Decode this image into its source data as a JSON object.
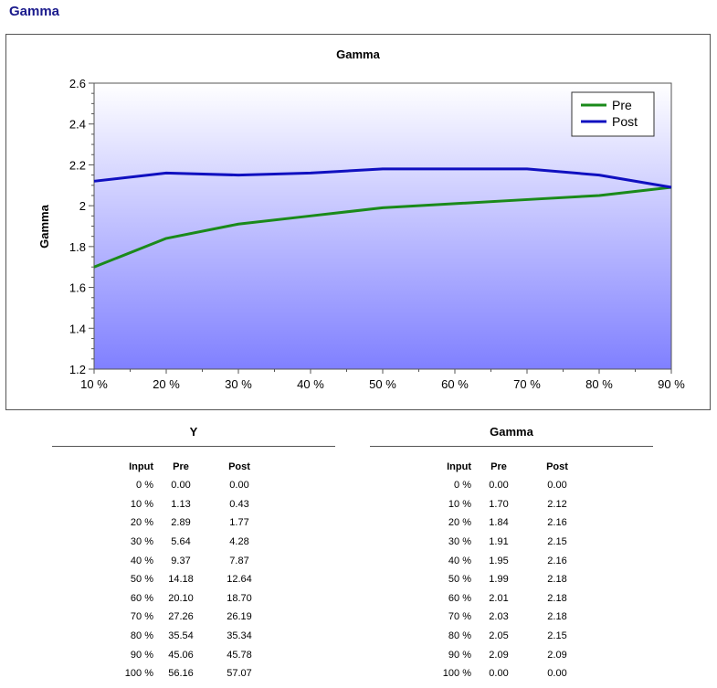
{
  "page": {
    "title": "Gamma"
  },
  "chart_data": {
    "type": "line",
    "title": "Gamma",
    "xlabel": "",
    "ylabel": "Gamma",
    "categories": [
      "10 %",
      "20 %",
      "30 %",
      "40 %",
      "50 %",
      "60 %",
      "70 %",
      "80 %",
      "90 %"
    ],
    "ylim": [
      1.2,
      2.6
    ],
    "yticks": [
      "1.2",
      "1.4",
      "1.6",
      "1.8",
      "2",
      "2.2",
      "2.4",
      "2.6"
    ],
    "series": [
      {
        "name": "Pre",
        "color": "#1a8a1a",
        "values": [
          1.7,
          1.84,
          1.91,
          1.95,
          1.99,
          2.01,
          2.03,
          2.05,
          2.09
        ]
      },
      {
        "name": "Post",
        "color": "#1010c0",
        "values": [
          2.12,
          2.16,
          2.15,
          2.16,
          2.18,
          2.18,
          2.18,
          2.15,
          2.09
        ]
      }
    ],
    "legend": "top-right",
    "background_gradient": [
      "#ffffff",
      "#8080ff"
    ]
  },
  "tables": [
    {
      "title": "Y",
      "headers": [
        "Input",
        "Pre",
        "Post"
      ],
      "rows": [
        [
          "0 %",
          "0.00",
          "0.00"
        ],
        [
          "10 %",
          "1.13",
          "0.43"
        ],
        [
          "20 %",
          "2.89",
          "1.77"
        ],
        [
          "30 %",
          "5.64",
          "4.28"
        ],
        [
          "40 %",
          "9.37",
          "7.87"
        ],
        [
          "50 %",
          "14.18",
          "12.64"
        ],
        [
          "60 %",
          "20.10",
          "18.70"
        ],
        [
          "70 %",
          "27.26",
          "26.19"
        ],
        [
          "80 %",
          "35.54",
          "35.34"
        ],
        [
          "90 %",
          "45.06",
          "45.78"
        ],
        [
          "100 %",
          "56.16",
          "57.07"
        ]
      ]
    },
    {
      "title": "Gamma",
      "headers": [
        "Input",
        "Pre",
        "Post"
      ],
      "rows": [
        [
          "0 %",
          "0.00",
          "0.00"
        ],
        [
          "10 %",
          "1.70",
          "2.12"
        ],
        [
          "20 %",
          "1.84",
          "2.16"
        ],
        [
          "30 %",
          "1.91",
          "2.15"
        ],
        [
          "40 %",
          "1.95",
          "2.16"
        ],
        [
          "50 %",
          "1.99",
          "2.18"
        ],
        [
          "60 %",
          "2.01",
          "2.18"
        ],
        [
          "70 %",
          "2.03",
          "2.18"
        ],
        [
          "80 %",
          "2.05",
          "2.15"
        ],
        [
          "90 %",
          "2.09",
          "2.09"
        ],
        [
          "100 %",
          "0.00",
          "0.00"
        ]
      ]
    }
  ]
}
